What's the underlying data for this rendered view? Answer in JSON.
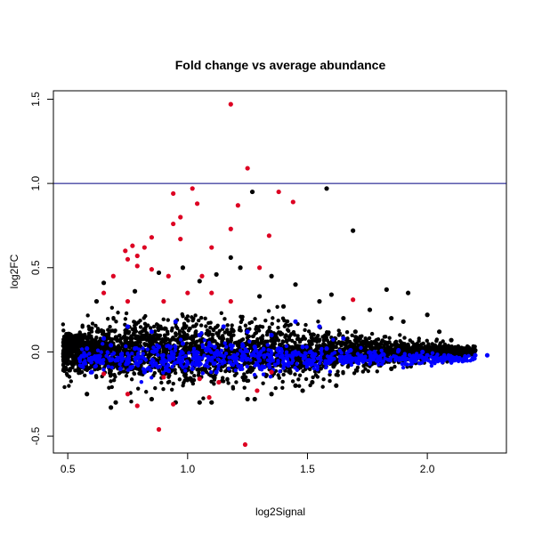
{
  "chart_data": {
    "type": "scatter",
    "title": "Fold change vs average abundance",
    "xlabel": "log2Signal",
    "ylabel": "log2FC",
    "xlim": [
      0.44,
      2.33
    ],
    "ylim": [
      -0.6,
      1.55
    ],
    "x_ticks": [
      "0.5",
      "1.0",
      "1.5",
      "2.0"
    ],
    "y_ticks": [
      "-0.5",
      "0.0",
      "0.5",
      "1.0",
      "1.5"
    ],
    "reference_line": {
      "y": 1.0,
      "color": "#000080"
    },
    "colors": {
      "black": "#000000",
      "blue": "#0000ff",
      "red": "#dd0022"
    },
    "series": [
      {
        "color": "black",
        "points": [
          [
            1.58,
            0.97
          ],
          [
            1.27,
            0.95
          ],
          [
            1.69,
            0.72
          ],
          [
            1.18,
            0.56
          ],
          [
            1.83,
            0.37
          ],
          [
            1.45,
            0.4
          ],
          [
            1.35,
            0.45
          ],
          [
            0.98,
            0.5
          ],
          [
            0.88,
            0.47
          ],
          [
            1.12,
            0.46
          ],
          [
            0.65,
            0.41
          ],
          [
            1.05,
            0.42
          ],
          [
            1.6,
            0.34
          ],
          [
            1.92,
            0.35
          ],
          [
            1.55,
            0.3
          ],
          [
            1.3,
            0.33
          ],
          [
            0.78,
            0.36
          ],
          [
            1.4,
            0.27
          ],
          [
            1.76,
            0.25
          ],
          [
            2.0,
            0.22
          ],
          [
            1.85,
            0.2
          ],
          [
            1.9,
            0.18
          ],
          [
            1.65,
            0.2
          ],
          [
            2.05,
            0.12
          ],
          [
            0.55,
            0.1
          ],
          [
            1.7,
            0.12
          ],
          [
            1.62,
            -0.2
          ],
          [
            1.25,
            -0.28
          ],
          [
            0.7,
            -0.3
          ],
          [
            0.68,
            -0.33
          ],
          [
            1.1,
            -0.3
          ],
          [
            1.05,
            -0.3
          ],
          [
            0.95,
            -0.3
          ],
          [
            1.48,
            -0.23
          ],
          [
            1.85,
            -0.1
          ],
          [
            2.1,
            0.07
          ],
          [
            2.2,
            0.01
          ],
          [
            1.28,
            -0.28
          ],
          [
            0.85,
            -0.28
          ],
          [
            1.35,
            -0.25
          ],
          [
            1.45,
            -0.2
          ],
          [
            1.52,
            -0.18
          ],
          [
            0.58,
            -0.25
          ],
          [
            0.62,
            0.3
          ],
          [
            1.22,
            0.5
          ]
        ]
      },
      {
        "color": "red",
        "points": [
          [
            1.18,
            1.47
          ],
          [
            1.25,
            1.09
          ],
          [
            0.94,
            0.94
          ],
          [
            1.02,
            0.97
          ],
          [
            1.38,
            0.95
          ],
          [
            1.44,
            0.89
          ],
          [
            1.04,
            0.88
          ],
          [
            1.21,
            0.87
          ],
          [
            0.97,
            0.8
          ],
          [
            0.94,
            0.76
          ],
          [
            1.18,
            0.73
          ],
          [
            1.34,
            0.69
          ],
          [
            0.85,
            0.68
          ],
          [
            0.97,
            0.67
          ],
          [
            0.77,
            0.63
          ],
          [
            0.82,
            0.62
          ],
          [
            1.1,
            0.62
          ],
          [
            0.79,
            0.57
          ],
          [
            0.74,
            0.6
          ],
          [
            0.75,
            0.55
          ],
          [
            0.79,
            0.51
          ],
          [
            1.3,
            0.5
          ],
          [
            0.85,
            0.49
          ],
          [
            0.92,
            0.45
          ],
          [
            0.69,
            0.45
          ],
          [
            1.06,
            0.45
          ],
          [
            0.65,
            0.35
          ],
          [
            1.0,
            0.35
          ],
          [
            1.1,
            0.35
          ],
          [
            1.18,
            0.3
          ],
          [
            1.69,
            0.31
          ],
          [
            0.75,
            0.3
          ],
          [
            0.9,
            0.3
          ],
          [
            0.94,
            -0.31
          ],
          [
            0.79,
            -0.32
          ],
          [
            0.88,
            -0.46
          ],
          [
            1.24,
            -0.55
          ],
          [
            1.29,
            -0.23
          ],
          [
            0.75,
            -0.25
          ],
          [
            1.09,
            -0.27
          ],
          [
            0.65,
            -0.13
          ],
          [
            0.9,
            -0.15
          ],
          [
            1.13,
            -0.18
          ],
          [
            1.35,
            -0.12
          ],
          [
            1.05,
            -0.16
          ]
        ]
      },
      {
        "color": "blue",
        "points": [
          [
            0.55,
            -0.04
          ],
          [
            0.62,
            -0.03
          ],
          [
            0.7,
            -0.05
          ],
          [
            0.8,
            -0.06
          ],
          [
            0.9,
            -0.06
          ],
          [
            1.0,
            -0.07
          ],
          [
            1.1,
            -0.05
          ],
          [
            1.2,
            -0.06
          ],
          [
            1.3,
            -0.05
          ],
          [
            1.4,
            -0.04
          ],
          [
            1.5,
            -0.05
          ],
          [
            1.6,
            -0.04
          ],
          [
            1.7,
            -0.04
          ],
          [
            1.8,
            -0.03
          ],
          [
            1.9,
            -0.03
          ],
          [
            2.0,
            -0.02
          ],
          [
            2.1,
            -0.03
          ],
          [
            2.2,
            -0.02
          ],
          [
            2.25,
            -0.02
          ],
          [
            0.65,
            0.08
          ],
          [
            0.75,
            0.15
          ],
          [
            0.85,
            0.12
          ],
          [
            0.95,
            0.18
          ],
          [
            1.05,
            0.1
          ],
          [
            1.15,
            0.15
          ],
          [
            1.25,
            0.12
          ],
          [
            1.35,
            0.1
          ],
          [
            1.45,
            0.18
          ],
          [
            1.55,
            0.15
          ],
          [
            1.65,
            0.08
          ],
          [
            0.6,
            -0.12
          ],
          [
            0.72,
            -0.1
          ],
          [
            0.82,
            -0.12
          ],
          [
            0.92,
            -0.11
          ],
          [
            1.02,
            -0.1
          ],
          [
            1.12,
            -0.12
          ],
          [
            1.22,
            -0.1
          ],
          [
            1.32,
            -0.09
          ],
          [
            1.42,
            -0.08
          ],
          [
            1.52,
            -0.07
          ],
          [
            0.58,
            0.02
          ],
          [
            0.68,
            0.04
          ],
          [
            0.78,
            0.02
          ],
          [
            0.88,
            0.03
          ],
          [
            0.98,
            0.05
          ],
          [
            1.08,
            0.02
          ],
          [
            1.18,
            0.04
          ],
          [
            1.28,
            0.03
          ],
          [
            1.38,
            0.02
          ],
          [
            1.48,
            0.03
          ],
          [
            1.58,
            0.02
          ],
          [
            1.68,
            0.01
          ],
          [
            1.78,
            0.0
          ],
          [
            1.88,
            0.01
          ],
          [
            1.98,
            0.0
          ]
        ]
      }
    ],
    "background_density": {
      "color": "black",
      "x_range": [
        0.48,
        2.2
      ],
      "y_center": 0.0,
      "spread_by_x": [
        [
          0.5,
          0.12
        ],
        [
          0.7,
          0.17
        ],
        [
          1.0,
          0.19
        ],
        [
          1.3,
          0.16
        ],
        [
          1.6,
          0.12
        ],
        [
          1.9,
          0.07
        ],
        [
          2.2,
          0.03
        ]
      ]
    }
  }
}
